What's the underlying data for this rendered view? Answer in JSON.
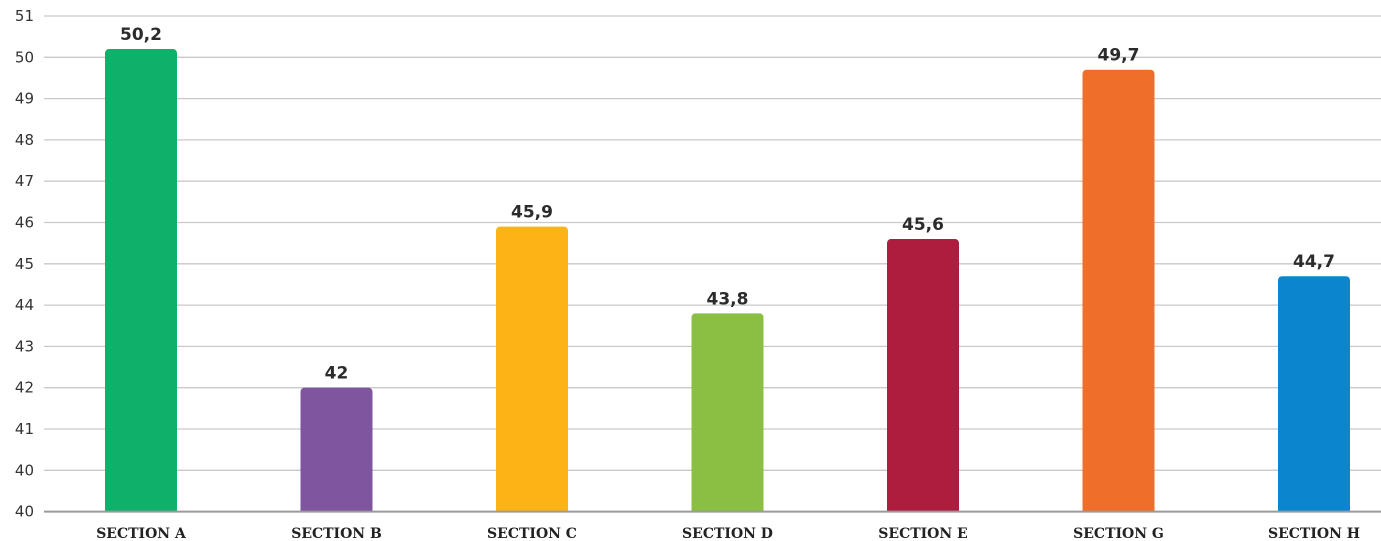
{
  "chart_data": {
    "type": "bar",
    "title": "",
    "xlabel": "",
    "ylabel": "",
    "categories": [
      "SECTION A",
      "SECTION B",
      "SECTION C",
      "SECTION D",
      "SECTION E",
      "SECTION G",
      "SECTION H"
    ],
    "values": [
      50.2,
      42,
      45.9,
      43.8,
      45.6,
      49.7,
      44.7
    ],
    "value_labels": [
      "50,2",
      "42",
      "45,9",
      "43,8",
      "45,6",
      "49,7",
      "44,7"
    ],
    "colors": [
      "#0fb06a",
      "#7f559f",
      "#fcb316",
      "#8bbf43",
      "#ae1d3e",
      "#ef6e2a",
      "#0a86cf"
    ],
    "y_tick_labels": [
      "40",
      "40",
      "41",
      "42",
      "43",
      "44",
      "45",
      "46",
      "47",
      "48",
      "49",
      "50",
      "51"
    ],
    "ylim": [
      39,
      51
    ],
    "grid": true,
    "legend": "none"
  }
}
